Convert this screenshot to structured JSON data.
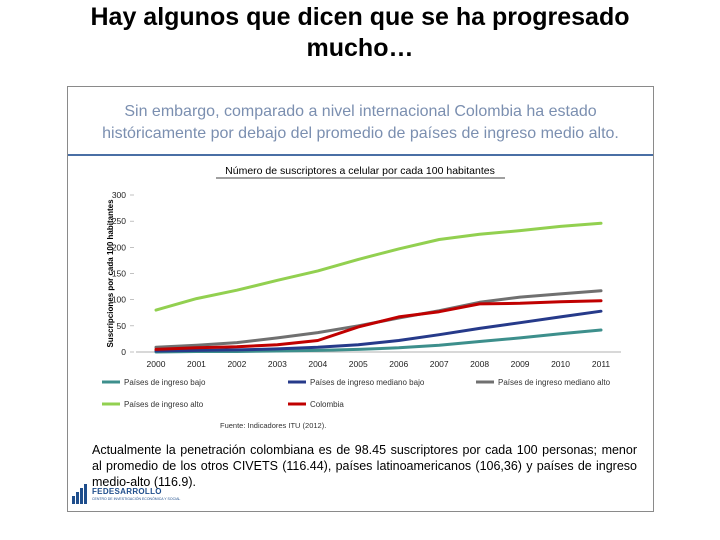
{
  "slide": {
    "title_line1": "Hay algunos que dicen que se ha progresado",
    "title_line2": "mucho…"
  },
  "card": {
    "header_line1": "Sin embargo, comparado a nivel internacional Colombia ha estado",
    "header_line2": "históricamente por debajo del promedio de países de ingreso medio alto.",
    "source": "Fuente: Indicadores ITU (2012).",
    "note": "Actualmente la penetración colombiana es de 98.45 suscriptores por cada 100 personas; menor al promedio de los otros CIVETS (116.44), países latinoamericanos (106,36) y países de ingreso medio-alto (116.9).",
    "logo_text": "FEDESARROLLO",
    "logo_subtext": "CENTRO DE INVESTIGACIÓN ECONÓMICA Y SOCIAL"
  },
  "chart_data": {
    "type": "line",
    "title": "Número de suscriptores a celular por cada 100 habitantes",
    "xlabel": "",
    "ylabel": "Suscripciones por cada 100 habitantes",
    "ylim": [
      0,
      300
    ],
    "yticks": [
      0,
      50,
      100,
      150,
      200,
      250,
      300
    ],
    "grid": false,
    "legend_position": "bottom",
    "categories": [
      "2000",
      "2001",
      "2002",
      "2003",
      "2004",
      "2005",
      "2006",
      "2007",
      "2008",
      "2009",
      "2010",
      "2011"
    ],
    "series": [
      {
        "name": "Países de ingreso bajo",
        "color": "#3d8f8c",
        "values": [
          0,
          1,
          1,
          2,
          3,
          5,
          8,
          13,
          20,
          27,
          35,
          42
        ]
      },
      {
        "name": "Países de ingreso mediano bajo",
        "color": "#263a8a",
        "values": [
          2,
          3,
          4,
          6,
          9,
          14,
          22,
          33,
          45,
          56,
          67,
          78
        ]
      },
      {
        "name": "Países de ingreso mediano alto",
        "color": "#707070",
        "values": [
          9,
          13,
          18,
          27,
          37,
          50,
          65,
          79,
          95,
          105,
          111,
          117
        ]
      },
      {
        "name": "Países de ingreso alto",
        "color": "#92d050",
        "values": [
          80,
          102,
          118,
          137,
          155,
          177,
          197,
          215,
          225,
          232,
          240,
          246
        ]
      },
      {
        "name": "Colombia",
        "color": "#c00000",
        "values": [
          5,
          8,
          10,
          14,
          22,
          48,
          67,
          77,
          92,
          93,
          96,
          98
        ]
      }
    ]
  }
}
